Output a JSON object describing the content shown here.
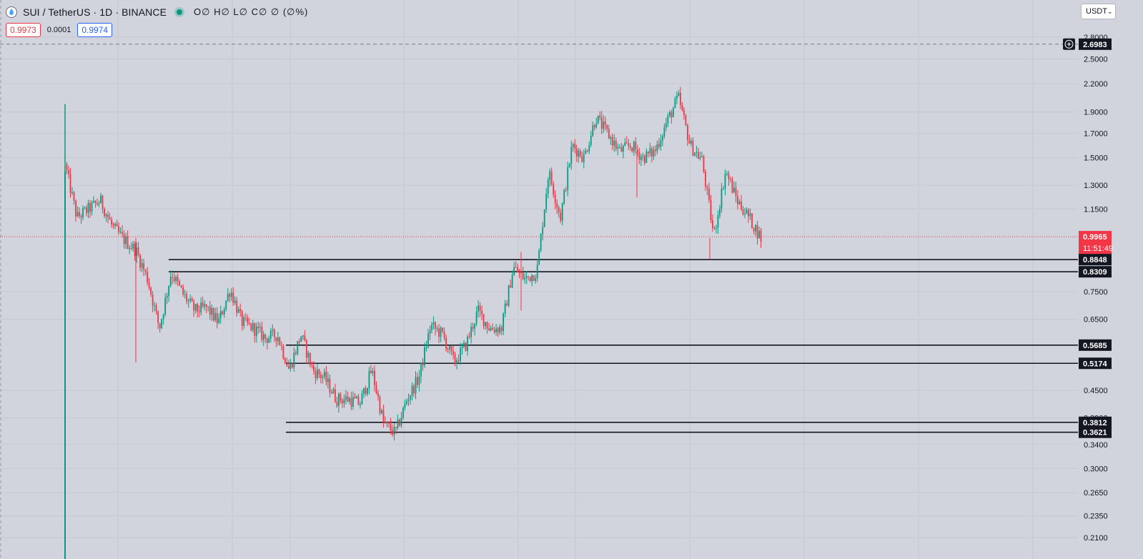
{
  "header": {
    "title": "SUI / TetherUS · 1D · BINANCE",
    "ohlc": "O∅ H∅ L∅ C∅ ∅ (∅%)",
    "logo_icon": "sui-logo-icon",
    "status_color": "#089981"
  },
  "quote": {
    "sell": "0.9973",
    "spread": "0.0001",
    "buy": "0.9974"
  },
  "currency": {
    "selected": "USDT"
  },
  "colors": {
    "up": "#089981",
    "down": "#f23645",
    "background": "#d1d4dc",
    "grid": "#c6c9d1",
    "level_line": "#131722"
  },
  "chart_data": {
    "type": "candlestick",
    "symbol": "SUI / TetherUS",
    "interval": "1D",
    "exchange": "BINANCE",
    "y_scale": "log",
    "ylim": [
      0.2,
      2.9
    ],
    "y_ticks": [
      2.8,
      2.5,
      2.2,
      1.9,
      1.7,
      1.5,
      1.3,
      1.15,
      0.75,
      0.65,
      0.45,
      0.39,
      0.34,
      0.3,
      0.265,
      0.235,
      0.21
    ],
    "y_tick_labels": [
      "2.8000",
      "2.5000",
      "2.2000",
      "1.9000",
      "1.7000",
      "1.5000",
      "1.3000",
      "1.1500",
      "0.7500",
      "0.6500",
      "0.4500",
      "0.3900",
      "0.3400",
      "0.3000",
      "0.2650",
      "0.2350",
      "0.2100"
    ],
    "crosshair_price": {
      "value": 2.6983,
      "label": "2.6983"
    },
    "last_price": {
      "value": 0.9965,
      "label": "0.9965",
      "countdown": "11:51:49"
    },
    "horizontal_levels": [
      {
        "value": 0.8848,
        "label": "0.8848",
        "from_index": 9
      },
      {
        "value": 0.8309,
        "label": "0.8309",
        "from_index": 9
      },
      {
        "value": 0.5685,
        "label": "0.5685",
        "from_index": 23
      },
      {
        "value": 0.5174,
        "label": "0.5174",
        "from_index": 23
      },
      {
        "value": 0.3812,
        "label": "0.3812",
        "from_index": 20
      },
      {
        "value": 0.3621,
        "label": "0.3621",
        "from_index": 20
      }
    ],
    "close_path": [
      1.45,
      1.1,
      1.15,
      1.2,
      1.05,
      0.98,
      0.93,
      0.8,
      0.62,
      0.83,
      0.74,
      0.68,
      0.69,
      0.64,
      0.76,
      0.64,
      0.62,
      0.59,
      0.6,
      0.5,
      0.6,
      0.5,
      0.48,
      0.43,
      0.43,
      0.42,
      0.5,
      0.38,
      0.36,
      0.43,
      0.48,
      0.63,
      0.6,
      0.52,
      0.57,
      0.68,
      0.62,
      0.62,
      0.85,
      0.8,
      0.83,
      1.4,
      1.1,
      1.6,
      1.5,
      1.85,
      1.7,
      1.55,
      1.6,
      1.5,
      1.55,
      1.8,
      2.05,
      1.6,
      1.48,
      1.0,
      1.4,
      1.2,
      1.1,
      0.99
    ]
  }
}
